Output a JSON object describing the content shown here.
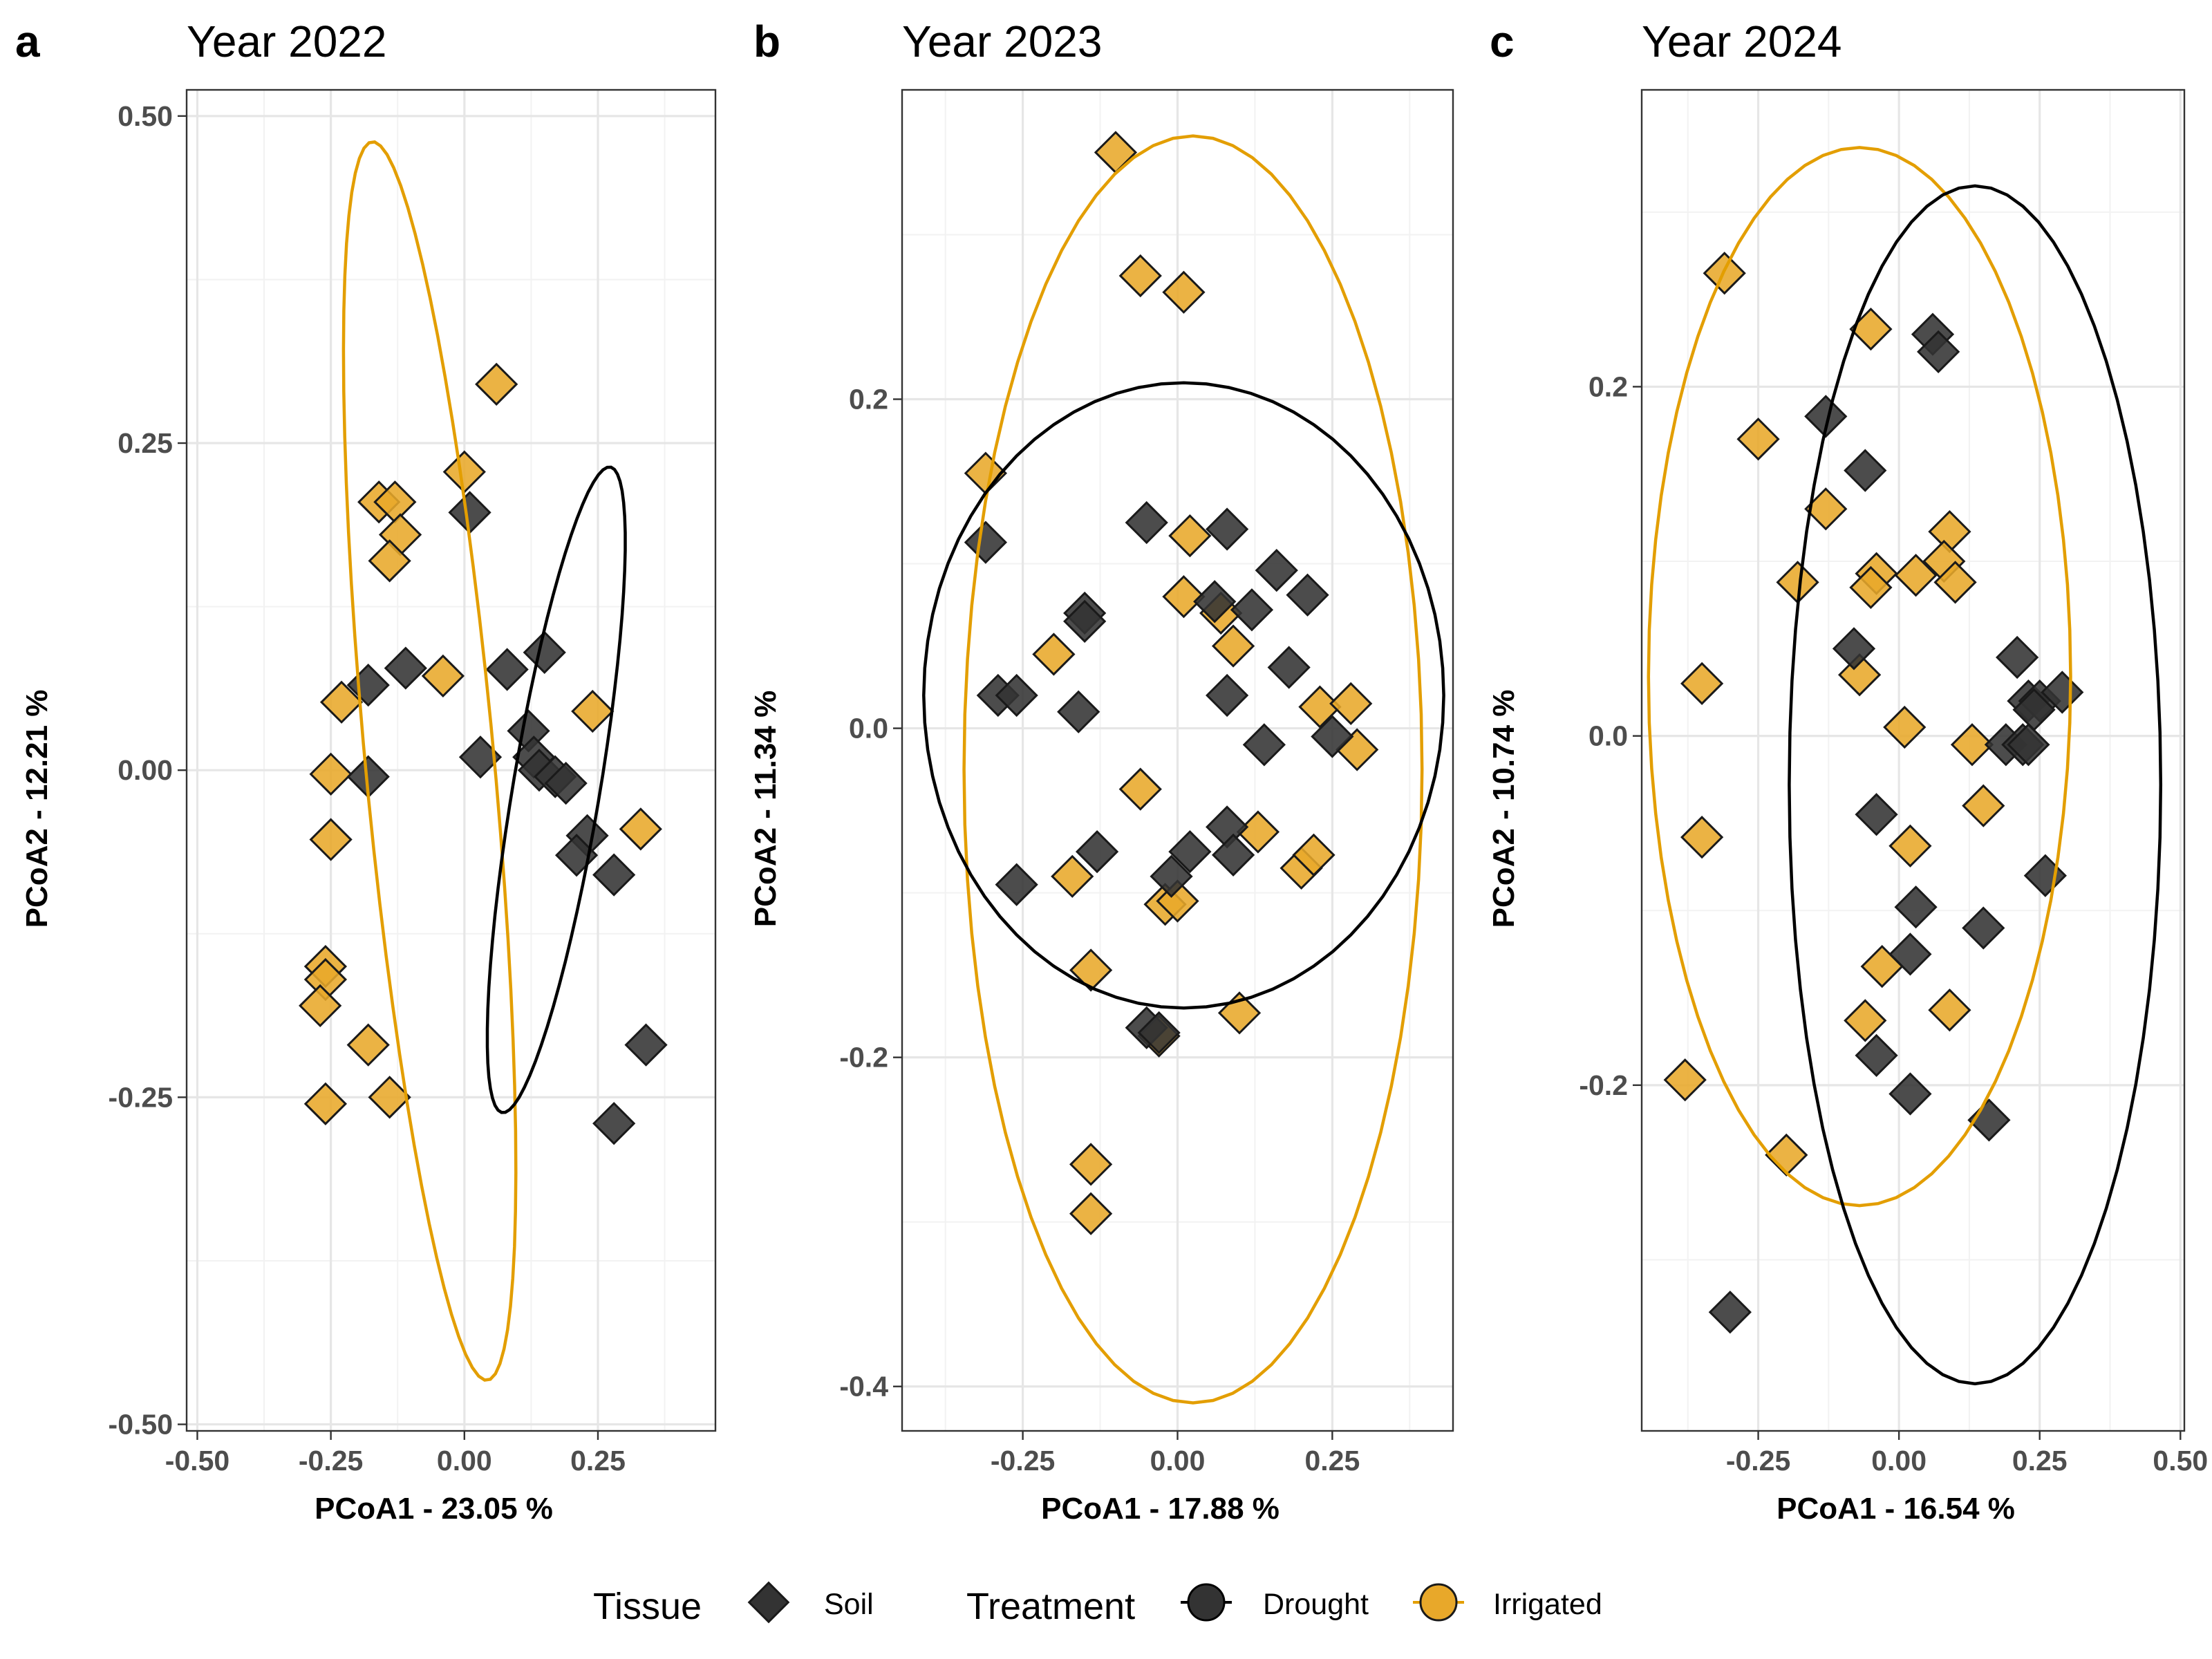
{
  "colors": {
    "drought": "#333333",
    "irrigated": "#E8A82A",
    "irrigated_ellipse": "#E39E00",
    "drought_ellipse": "#000000",
    "marker_edge": "#1a1a1a"
  },
  "legend": {
    "tissue_title": "Tissue",
    "tissue_label": "Soil",
    "tissue_marker": "diamond-icon",
    "treatment_title": "Treatment",
    "drought_label": "Drought",
    "irrigated_label": "Irrigated"
  },
  "chart_data": [
    {
      "type": "scatter",
      "tag": "a",
      "title": "Year 2022",
      "xlabel": "PCoA1 - 23.05 %",
      "ylabel": "PCoA2 - 12.21 %",
      "xlim": [
        -0.52,
        0.47
      ],
      "ylim": [
        -0.505,
        0.52
      ],
      "xticks": [
        -0.5,
        -0.25,
        0.0,
        0.25
      ],
      "xtick_labels": [
        "-0.50",
        "-0.25",
        "0.00",
        "0.25"
      ],
      "yticks": [
        -0.5,
        -0.25,
        0.0,
        0.25,
        0.5
      ],
      "ytick_labels": [
        "-0.50",
        "-0.25",
        "0.00",
        "0.25",
        "0.50"
      ],
      "grid": true,
      "series": [
        {
          "name": "Drought",
          "marker": "diamond",
          "points": [
            [
              0.01,
              0.197
            ],
            [
              -0.18,
              0.065
            ],
            [
              -0.11,
              0.078
            ],
            [
              0.08,
              0.077
            ],
            [
              0.15,
              0.09
            ],
            [
              0.12,
              0.03
            ],
            [
              0.13,
              0.01
            ],
            [
              0.03,
              0.01
            ],
            [
              0.14,
              0.0
            ],
            [
              0.17,
              -0.005
            ],
            [
              0.19,
              -0.01
            ],
            [
              -0.18,
              -0.005
            ],
            [
              0.23,
              -0.05
            ],
            [
              0.21,
              -0.065
            ],
            [
              0.28,
              -0.08
            ],
            [
              0.34,
              -0.21
            ],
            [
              0.28,
              -0.27
            ]
          ]
        },
        {
          "name": "Irrigated",
          "marker": "diamond",
          "points": [
            [
              0.06,
              0.295
            ],
            [
              0.0,
              0.228
            ],
            [
              -0.16,
              0.205
            ],
            [
              -0.13,
              0.205
            ],
            [
              -0.12,
              0.18
            ],
            [
              -0.14,
              0.16
            ],
            [
              -0.04,
              0.072
            ],
            [
              -0.23,
              0.052
            ],
            [
              0.24,
              0.045
            ],
            [
              -0.25,
              -0.003
            ],
            [
              -0.25,
              -0.053
            ],
            [
              0.33,
              -0.045
            ],
            [
              -0.26,
              -0.15
            ],
            [
              -0.26,
              -0.16
            ],
            [
              -0.27,
              -0.18
            ],
            [
              -0.18,
              -0.21
            ],
            [
              -0.26,
              -0.255
            ],
            [
              -0.14,
              -0.25
            ]
          ]
        }
      ],
      "ellipses": [
        {
          "name": "Irrigated",
          "center": [
            -0.065,
            0.007
          ],
          "semi_axes": [
            0.118,
            0.486
          ],
          "tilt_deg": 13.5
        },
        {
          "name": "Drought",
          "center": [
            0.172,
            -0.015
          ],
          "semi_axes": [
            0.076,
            0.268
          ],
          "tilt_deg": -24
        }
      ]
    },
    {
      "type": "scatter",
      "tag": "b",
      "title": "Year 2023",
      "xlabel": "PCoA1 - 17.88 %",
      "ylabel": "PCoA2 - 11.34 %",
      "xlim": [
        -0.445,
        0.445
      ],
      "ylim": [
        -0.427,
        0.388
      ],
      "xticks": [
        -0.25,
        0.0,
        0.25
      ],
      "xtick_labels": [
        "-0.25",
        "0.00",
        "0.25"
      ],
      "yticks": [
        -0.4,
        -0.2,
        0.0,
        0.2
      ],
      "ytick_labels": [
        "-0.4",
        "-0.2",
        "0.0",
        "0.2"
      ],
      "grid": true,
      "series": [
        {
          "name": "Drought",
          "marker": "diamond",
          "points": [
            [
              -0.31,
              0.113
            ],
            [
              -0.05,
              0.125
            ],
            [
              0.08,
              0.121
            ],
            [
              -0.15,
              0.07
            ],
            [
              -0.15,
              0.065
            ],
            [
              0.06,
              0.077
            ],
            [
              0.12,
              0.072
            ],
            [
              0.16,
              0.096
            ],
            [
              0.21,
              0.081
            ],
            [
              -0.29,
              0.02
            ],
            [
              -0.26,
              0.02
            ],
            [
              -0.16,
              0.01
            ],
            [
              0.08,
              0.02
            ],
            [
              0.18,
              0.037
            ],
            [
              0.14,
              -0.01
            ],
            [
              0.25,
              -0.005
            ],
            [
              -0.13,
              -0.075
            ],
            [
              -0.26,
              -0.095
            ],
            [
              0.08,
              -0.06
            ],
            [
              -0.01,
              -0.09
            ],
            [
              0.02,
              -0.075
            ],
            [
              0.09,
              -0.077
            ],
            [
              -0.05,
              -0.182
            ],
            [
              -0.03,
              -0.185
            ]
          ]
        },
        {
          "name": "Irrigated",
          "marker": "diamond",
          "points": [
            [
              -0.1,
              0.35
            ],
            [
              -0.06,
              0.275
            ],
            [
              0.01,
              0.265
            ],
            [
              -0.31,
              0.155
            ],
            [
              0.02,
              0.117
            ],
            [
              0.01,
              0.08
            ],
            [
              0.07,
              0.07
            ],
            [
              0.09,
              0.05
            ],
            [
              -0.2,
              0.045
            ],
            [
              0.23,
              0.013
            ],
            [
              0.28,
              0.015
            ],
            [
              0.29,
              -0.013
            ],
            [
              -0.06,
              -0.037
            ],
            [
              0.13,
              -0.063
            ],
            [
              0.2,
              -0.085
            ],
            [
              0.22,
              -0.077
            ],
            [
              -0.17,
              -0.09
            ],
            [
              -0.02,
              -0.107
            ],
            [
              0.0,
              -0.105
            ],
            [
              -0.14,
              -0.147
            ],
            [
              0.1,
              -0.173
            ],
            [
              -0.03,
              -0.187
            ],
            [
              -0.14,
              -0.265
            ],
            [
              -0.14,
              -0.295
            ]
          ]
        }
      ],
      "ellipses": [
        {
          "name": "Irrigated",
          "center": [
            0.025,
            -0.025
          ],
          "semi_axes": [
            0.37,
            0.385
          ],
          "tilt_deg": 0
        },
        {
          "name": "Drought",
          "center": [
            0.01,
            0.02
          ],
          "semi_axes": [
            0.42,
            0.19
          ],
          "tilt_deg": 0
        }
      ]
    },
    {
      "type": "scatter",
      "tag": "c",
      "title": "Year 2024",
      "xlabel": "PCoA1 - 16.54 %",
      "ylabel": "PCoA2 - 10.74 %",
      "xlim": [
        -0.457,
        0.507
      ],
      "ylim": [
        -0.398,
        0.37
      ],
      "xticks": [
        -0.25,
        0.0,
        0.25,
        0.5
      ],
      "xtick_labels": [
        "-0.25",
        "0.00",
        "0.25",
        "0.50"
      ],
      "yticks": [
        -0.2,
        0.0,
        0.2
      ],
      "ytick_labels": [
        "-0.2",
        "0.0",
        "0.2"
      ],
      "grid": true,
      "series": [
        {
          "name": "Drought",
          "marker": "diamond",
          "points": [
            [
              0.06,
              0.23
            ],
            [
              0.07,
              0.22
            ],
            [
              -0.13,
              0.183
            ],
            [
              -0.06,
              0.152
            ],
            [
              -0.08,
              0.05
            ],
            [
              0.21,
              0.045
            ],
            [
              0.23,
              0.02
            ],
            [
              0.25,
              0.02
            ],
            [
              0.24,
              0.015
            ],
            [
              0.29,
              0.025
            ],
            [
              0.19,
              -0.005
            ],
            [
              0.22,
              -0.005
            ],
            [
              0.23,
              -0.005
            ],
            [
              -0.04,
              -0.045
            ],
            [
              0.03,
              -0.098
            ],
            [
              0.15,
              -0.11
            ],
            [
              0.26,
              -0.08
            ],
            [
              0.02,
              -0.125
            ],
            [
              -0.04,
              -0.183
            ],
            [
              0.02,
              -0.205
            ],
            [
              0.16,
              -0.22
            ],
            [
              -0.3,
              -0.33
            ]
          ]
        },
        {
          "name": "Irrigated",
          "marker": "diamond",
          "points": [
            [
              -0.31,
              0.265
            ],
            [
              -0.05,
              0.233
            ],
            [
              -0.25,
              0.17
            ],
            [
              -0.13,
              0.13
            ],
            [
              0.09,
              0.117
            ],
            [
              0.08,
              0.1
            ],
            [
              -0.18,
              0.088
            ],
            [
              -0.04,
              0.093
            ],
            [
              -0.05,
              0.085
            ],
            [
              0.03,
              0.092
            ],
            [
              0.1,
              0.088
            ],
            [
              -0.35,
              0.03
            ],
            [
              -0.07,
              0.035
            ],
            [
              0.01,
              0.005
            ],
            [
              0.13,
              -0.005
            ],
            [
              -0.35,
              -0.058
            ],
            [
              0.15,
              -0.04
            ],
            [
              0.02,
              -0.063
            ],
            [
              -0.03,
              -0.132
            ],
            [
              -0.06,
              -0.163
            ],
            [
              0.09,
              -0.157
            ],
            [
              -0.38,
              -0.197
            ],
            [
              -0.2,
              -0.24
            ]
          ]
        }
      ],
      "ellipses": [
        {
          "name": "Irrigated",
          "center": [
            -0.07,
            0.034
          ],
          "semi_axes": [
            0.375,
            0.303
          ],
          "tilt_deg": 0
        },
        {
          "name": "Drought",
          "center": [
            0.135,
            -0.028
          ],
          "semi_axes": [
            0.33,
            0.343
          ],
          "tilt_deg": 0
        }
      ]
    }
  ]
}
